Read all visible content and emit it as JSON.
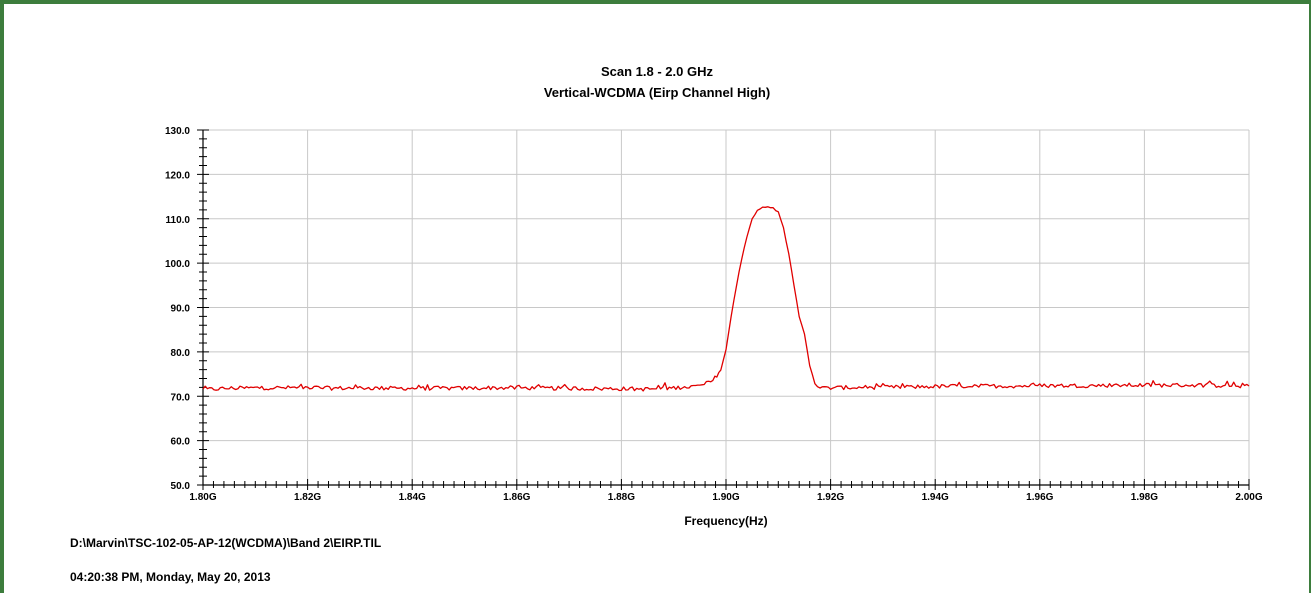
{
  "chart_data": {
    "type": "line",
    "title": "Scan 1.8 - 2.0 GHz",
    "subtitle": "Vertical-WCDMA (Eirp Channel High)",
    "xlabel": "Frequency(Hz)",
    "ylabel": "",
    "xlim": [
      1.8,
      2.0
    ],
    "ylim": [
      50,
      130
    ],
    "x_tick_labels": [
      "1.80G",
      "1.82G",
      "1.84G",
      "1.86G",
      "1.88G",
      "1.90G",
      "1.92G",
      "1.94G",
      "1.96G",
      "1.98G",
      "2.00G"
    ],
    "y_tick_labels": [
      "50.0",
      "60.0",
      "70.0",
      "80.0",
      "90.0",
      "100.0",
      "110.0",
      "120.0",
      "130.0"
    ],
    "grid": true,
    "series": [
      {
        "name": "",
        "color": "#e00000",
        "x": [
          1.8,
          1.805,
          1.81,
          1.815,
          1.82,
          1.825,
          1.83,
          1.835,
          1.84,
          1.845,
          1.85,
          1.855,
          1.86,
          1.865,
          1.87,
          1.875,
          1.88,
          1.885,
          1.89,
          1.895,
          1.8975,
          1.899,
          1.9,
          1.901,
          1.902,
          1.903,
          1.904,
          1.905,
          1.906,
          1.907,
          1.908,
          1.909,
          1.91,
          1.911,
          1.912,
          1.913,
          1.914,
          1.915,
          1.916,
          1.917,
          1.918,
          1.92,
          1.925,
          1.93,
          1.935,
          1.94,
          1.945,
          1.95,
          1.955,
          1.96,
          1.965,
          1.97,
          1.975,
          1.98,
          1.985,
          1.99,
          1.995,
          2.0
        ],
        "y": [
          71.5,
          71.8,
          71.9,
          71.9,
          72.0,
          71.8,
          71.9,
          71.8,
          71.8,
          71.8,
          71.8,
          71.9,
          71.9,
          71.8,
          71.8,
          71.7,
          71.7,
          71.6,
          71.9,
          72.3,
          73.5,
          76.0,
          80.5,
          88.0,
          95.0,
          101.0,
          106.0,
          110.0,
          112.0,
          112.5,
          112.6,
          112.4,
          111.5,
          108.0,
          102.0,
          95.0,
          88.0,
          84.0,
          77.0,
          73.0,
          71.8,
          71.9,
          72.0,
          72.0,
          72.1,
          72.2,
          72.3,
          72.3,
          72.3,
          72.4,
          72.4,
          72.4,
          72.5,
          72.5,
          72.5,
          72.5,
          72.4,
          72.3
        ]
      }
    ]
  },
  "footer": {
    "file_path": "D:\\Marvin\\TSC-102-05-AP-12(WCDMA)\\Band 2\\EIRP.TIL",
    "timestamp": "04:20:38 PM, Monday, May 20, 2013"
  }
}
